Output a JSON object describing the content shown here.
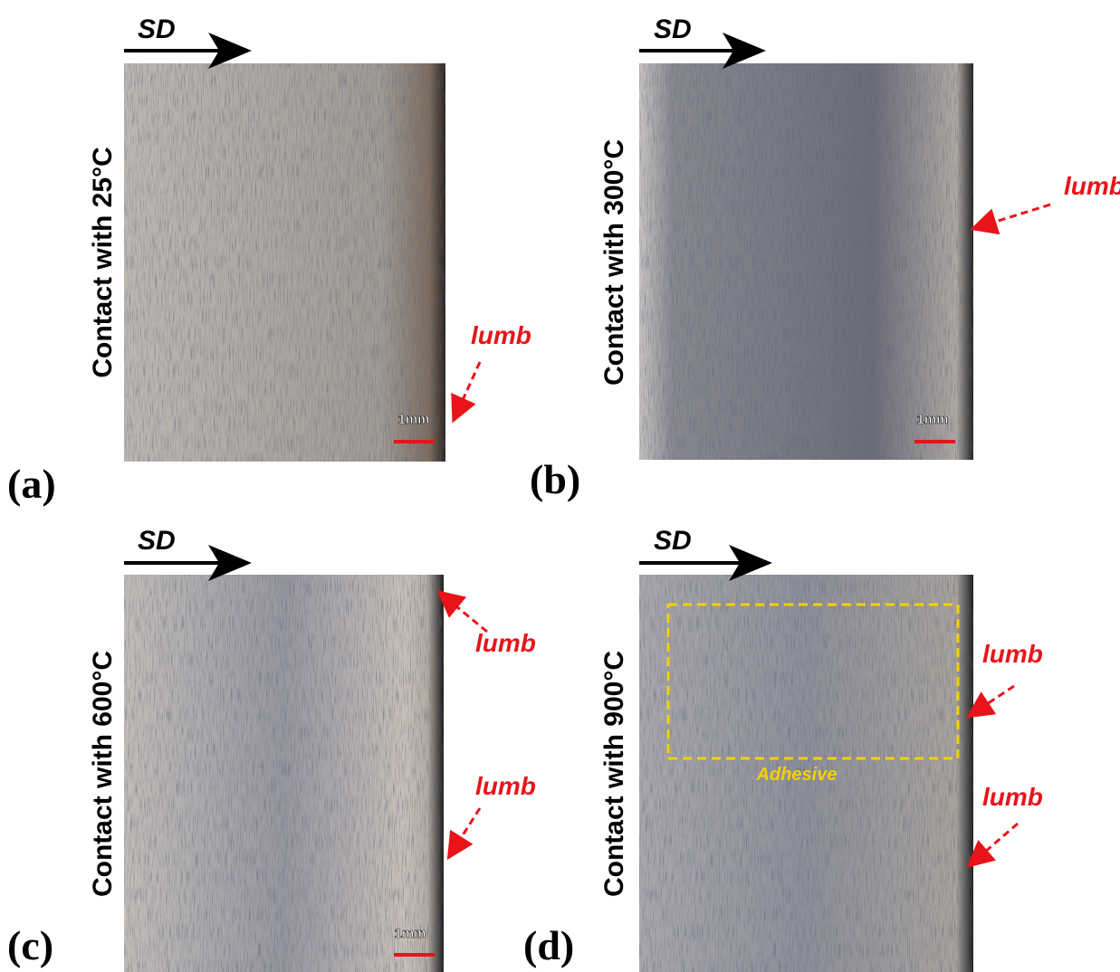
{
  "panels": [
    {
      "label": "(a)",
      "side_label": "Contact with 25°C",
      "direction": "SD",
      "scale_bar": "1mm",
      "annotations": [
        "lumb"
      ]
    },
    {
      "label": "(b)",
      "side_label": "Contact with 300°C",
      "direction": "SD",
      "scale_bar": "1mm",
      "annotations": [
        "lumb"
      ]
    },
    {
      "label": "(c)",
      "side_label": "Contact with 600°C",
      "direction": "SD",
      "scale_bar": "1mm",
      "annotations": [
        "lumb",
        "lumb"
      ]
    },
    {
      "label": "(d)",
      "side_label": "Contact with 900°C",
      "direction": "SD",
      "annotations": [
        "lumb",
        "lumb"
      ],
      "region_label": "Adhesive"
    }
  ]
}
